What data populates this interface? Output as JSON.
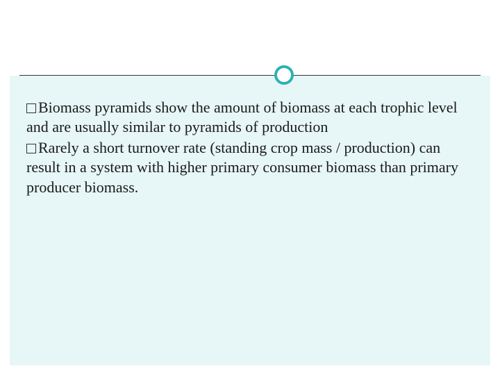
{
  "colors": {
    "accent": "#2db2b2",
    "content_bg": "#e7f6f6",
    "text": "#1a1a1a",
    "divider": "#333333"
  },
  "bullets": [
    {
      "text": "Biomass pyramids show the amount of biomass at each trophic level and are usually similar to pyramids of production"
    },
    {
      "text": "Rarely a short turnover rate (standing crop mass / production) can result in a system with higher primary consumer biomass than primary producer biomass."
    }
  ]
}
